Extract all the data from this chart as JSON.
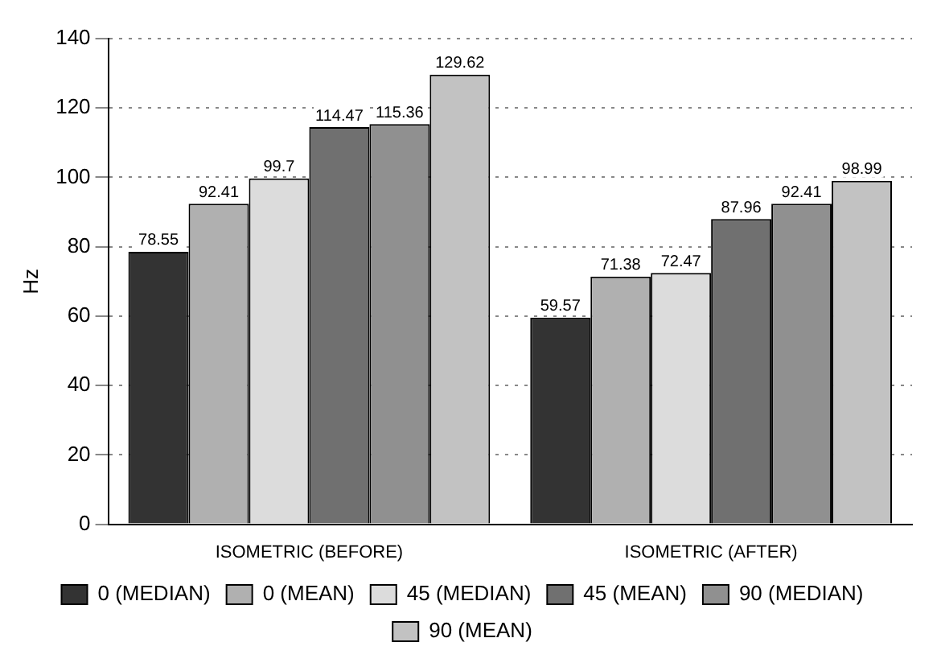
{
  "chart_data": {
    "type": "bar",
    "ylabel": "Hz",
    "categories": [
      "ISOMETRIC (BEFORE)",
      "ISOMETRIC (AFTER)"
    ],
    "series": [
      {
        "name": "0 (MEDIAN)",
        "color": "#333333",
        "values": [
          78.55,
          59.57
        ]
      },
      {
        "name": "0 (MEAN)",
        "color": "#b0b0b0",
        "values": [
          92.41,
          71.38
        ]
      },
      {
        "name": "45 (MEDIAN)",
        "color": "#dcdcdc",
        "values": [
          99.7,
          72.47
        ]
      },
      {
        "name": "45 (MEAN)",
        "color": "#707070",
        "values": [
          114.47,
          87.96
        ]
      },
      {
        "name": "90 (MEDIAN)",
        "color": "#909090",
        "values": [
          115.36,
          92.41
        ]
      },
      {
        "name": "90 (MEAN)",
        "color": "#c2c2c2",
        "values": [
          129.62,
          98.99
        ]
      }
    ],
    "ylim": [
      0,
      140
    ],
    "yticks": [
      0,
      20,
      40,
      60,
      80,
      100,
      120,
      140
    ],
    "grid": "y",
    "legend": "bottom",
    "data_labels": true
  }
}
